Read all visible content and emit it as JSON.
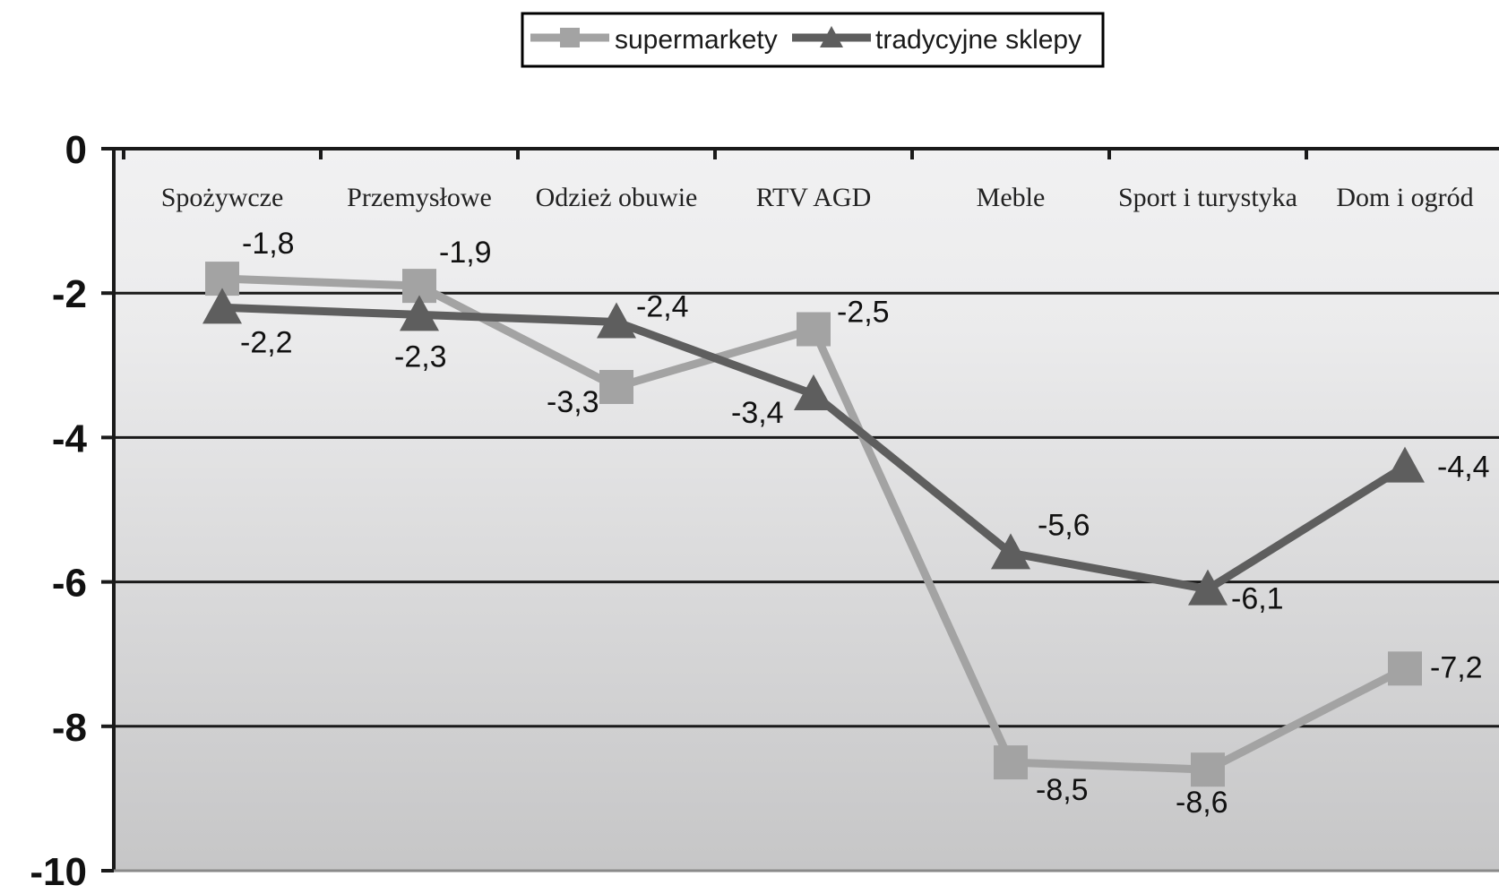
{
  "chart_data": {
    "type": "line",
    "categories": [
      "Spożywcze",
      "Przemysłowe",
      "Odzież obuwie",
      "RTV  AGD",
      "Meble",
      "Sport i turystyka",
      "Dom i ogród"
    ],
    "series": [
      {
        "name": "supermarkety",
        "values": [
          -1.8,
          -1.9,
          -3.3,
          -2.5,
          -8.5,
          -8.6,
          -7.2
        ],
        "labels": [
          "-1,8",
          "-1,9",
          "-3,3",
          "-2,5",
          "-8,5",
          "-8,6",
          "-7,2"
        ],
        "color": "#a3a3a3",
        "marker": "square"
      },
      {
        "name": "tradycyjne sklepy",
        "values": [
          -2.2,
          -2.3,
          -2.4,
          -3.4,
          -5.6,
          -6.1,
          -4.4
        ],
        "labels": [
          "-2,2",
          "-2,3",
          "-2,4",
          "-3,4",
          "-5,6",
          "-6,1",
          "-4,4"
        ],
        "color": "#5e5e5e",
        "marker": "triangle"
      }
    ],
    "ylim": [
      -10,
      0
    ],
    "yticks": [
      0,
      -2,
      -4,
      -6,
      -8,
      -10
    ],
    "ytick_labels": [
      "0",
      "-2",
      "-4",
      "-6",
      "-8",
      "-10"
    ],
    "xaxis_position": "top",
    "grid": true,
    "legend": "top-center",
    "title": "",
    "xlabel": "",
    "ylabel": ""
  }
}
